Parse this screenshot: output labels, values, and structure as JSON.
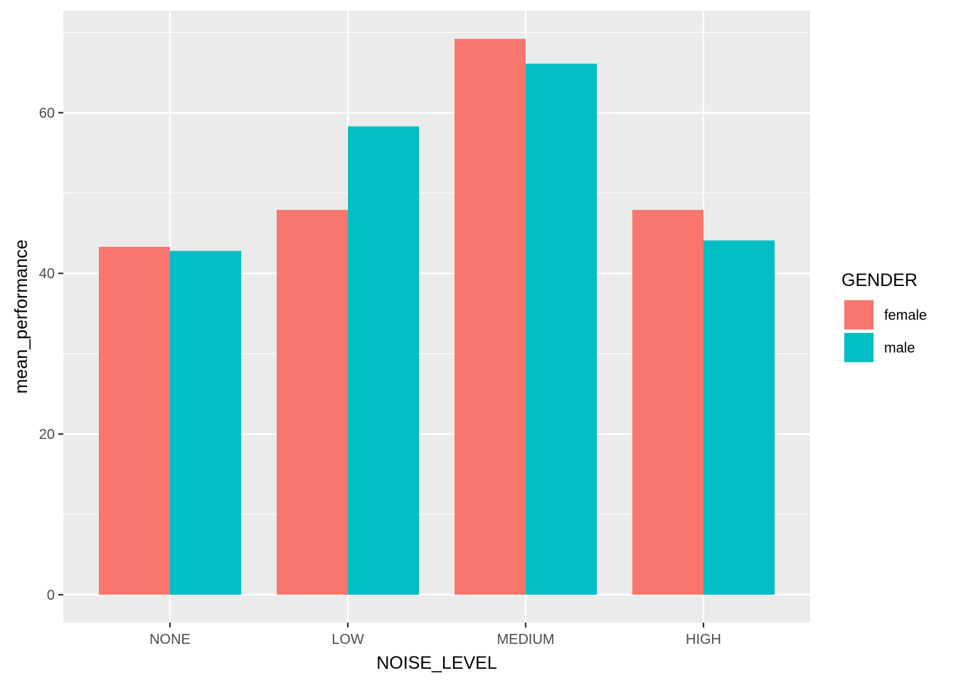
{
  "chart_data": {
    "type": "bar",
    "title": "",
    "xlabel": "NOISE_LEVEL",
    "ylabel": "mean_performance",
    "categories": [
      "NONE",
      "LOW",
      "MEDIUM",
      "HIGH"
    ],
    "series": [
      {
        "name": "female",
        "color": "#F8766D",
        "values": [
          43.3,
          47.9,
          69.2,
          47.9
        ]
      },
      {
        "name": "male",
        "color": "#00BFC4",
        "values": [
          42.8,
          58.3,
          66.1,
          44.1
        ]
      }
    ],
    "ylim": [
      -3.46,
      72.7
    ],
    "yticks": [
      0,
      20,
      40,
      60
    ],
    "ytick_labels": [
      "0",
      "20",
      "40",
      "60"
    ],
    "grid": true,
    "legend": {
      "title": "GENDER",
      "position": "right",
      "labels": [
        "female",
        "male"
      ]
    },
    "colors": {
      "panel_background": "#EBEBEB",
      "grid": "#FFFFFF",
      "tick_text": "#4D4D4D",
      "tick_mark": "#333333"
    }
  }
}
